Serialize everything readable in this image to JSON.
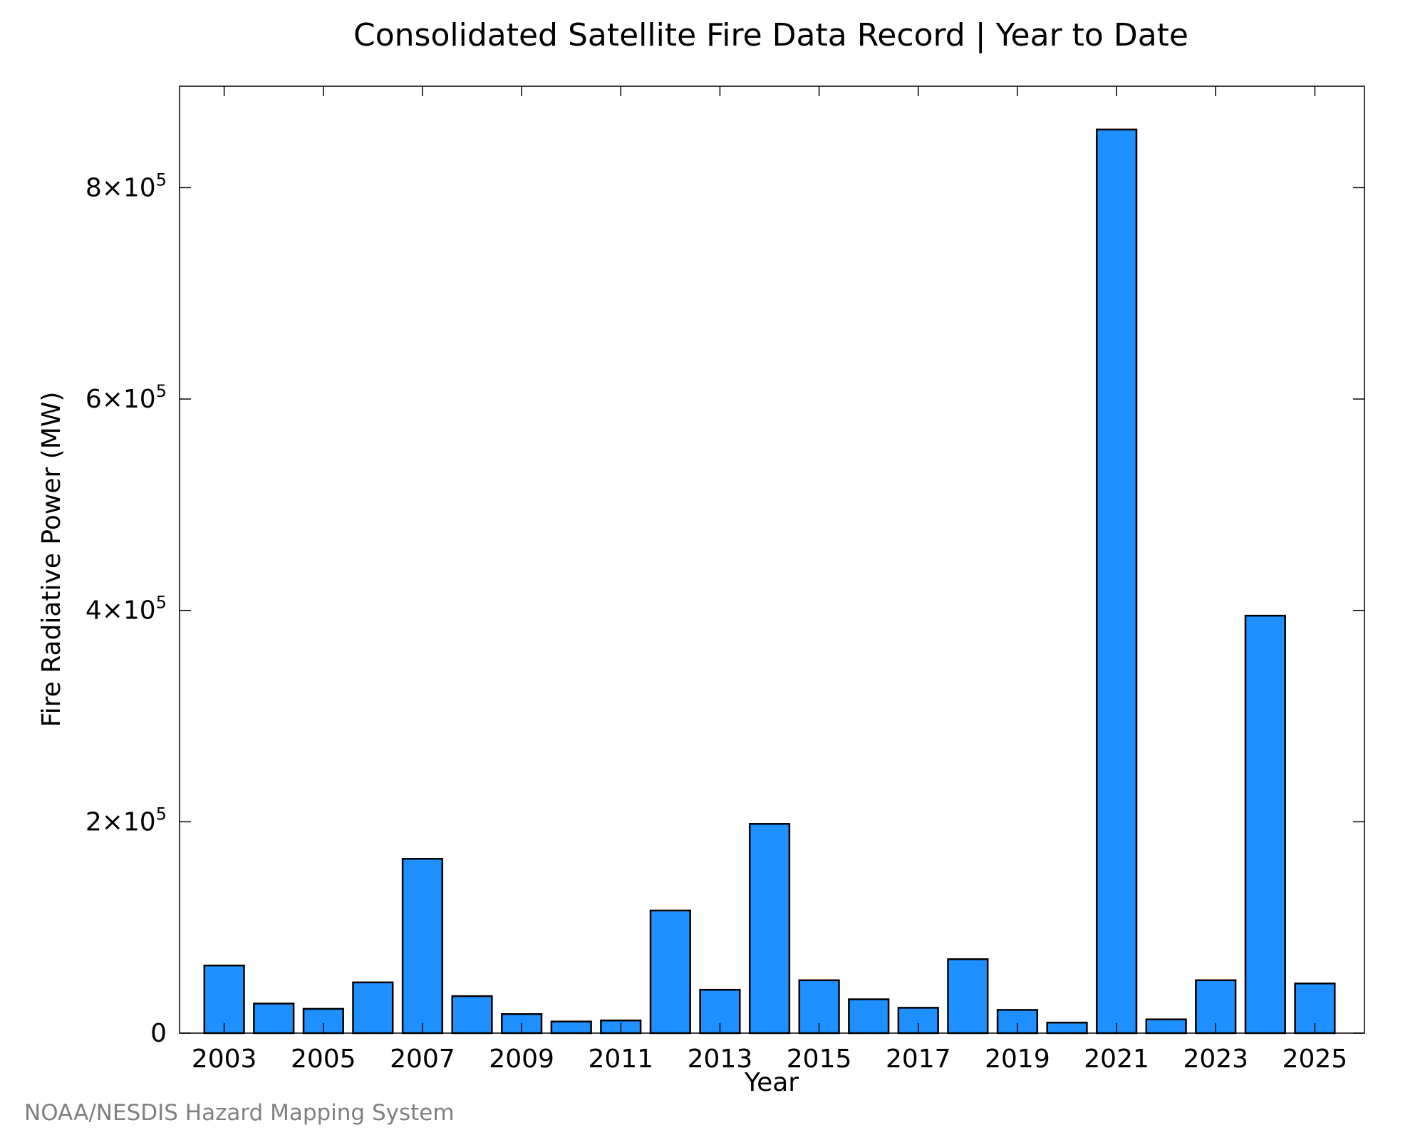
{
  "chart_data": {
    "type": "bar",
    "title": "Consolidated Satellite Fire Data Record | Year to Date",
    "xlabel": "Year",
    "ylabel": "Fire Radiative Power (MW)",
    "credit": "NOAA/NESDIS Hazard Mapping System",
    "categories": [
      2003,
      2004,
      2005,
      2006,
      2007,
      2008,
      2009,
      2010,
      2011,
      2012,
      2013,
      2014,
      2015,
      2016,
      2017,
      2018,
      2019,
      2020,
      2021,
      2022,
      2023,
      2024,
      2025
    ],
    "values": [
      64000,
      28000,
      23000,
      48000,
      165000,
      35000,
      18000,
      11000,
      12000,
      116000,
      41000,
      198000,
      50000,
      32000,
      24000,
      70000,
      22000,
      10000,
      855000,
      13000,
      50000,
      395000,
      47000
    ],
    "x_tick_labels": [
      "2003",
      "2005",
      "2007",
      "2009",
      "2011",
      "2013",
      "2015",
      "2017",
      "2019",
      "2021",
      "2023",
      "2025"
    ],
    "y_ticks": [
      {
        "value": 0,
        "mantissa": "0",
        "exponent": ""
      },
      {
        "value": 200000,
        "mantissa": "2×10",
        "exponent": "5"
      },
      {
        "value": 400000,
        "mantissa": "4×10",
        "exponent": "5"
      },
      {
        "value": 600000,
        "mantissa": "6×10",
        "exponent": "5"
      },
      {
        "value": 800000,
        "mantissa": "8×10",
        "exponent": "5"
      }
    ],
    "xlim": [
      2002.1,
      2026
    ],
    "ylim": [
      0,
      896000
    ],
    "grid": false,
    "colors": {
      "bar_fill": "#1e90ff",
      "bar_stroke": "#000000",
      "credit_text": "#808080"
    }
  }
}
